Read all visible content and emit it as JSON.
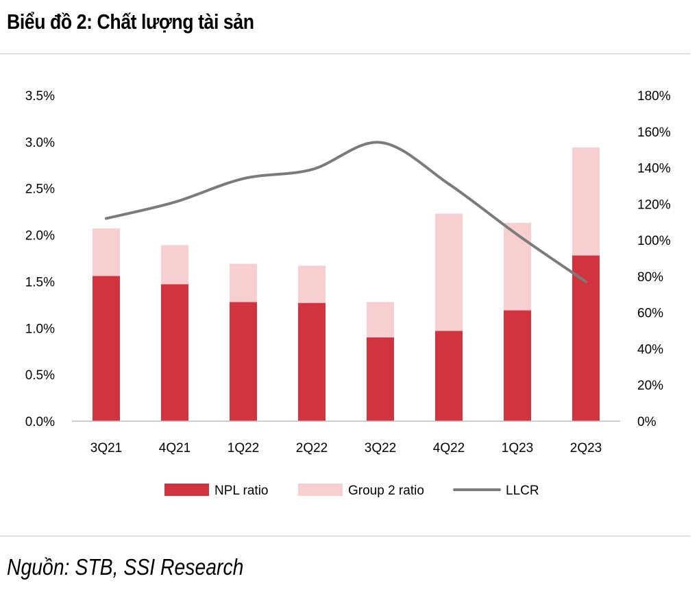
{
  "title": "Biểu đồ 2: Chất lượng tài sản",
  "source": "Nguồn: STB, SSI Research",
  "colors": {
    "npl": "#d1343f",
    "group2": "#f7cfd0",
    "llcr": "#7b7b7b",
    "axis": "#bdbdbd"
  },
  "chart_data": {
    "type": "bar",
    "stacked": true,
    "categories": [
      "3Q21",
      "4Q21",
      "1Q22",
      "2Q22",
      "3Q22",
      "4Q22",
      "1Q23",
      "2Q23"
    ],
    "series": [
      {
        "name": "NPL ratio",
        "type": "bar",
        "axis": "left",
        "values": [
          1.56,
          1.47,
          1.28,
          1.27,
          0.9,
          0.97,
          1.19,
          1.78
        ]
      },
      {
        "name": "Group 2 ratio",
        "type": "bar",
        "axis": "left",
        "values": [
          0.51,
          0.42,
          0.41,
          0.4,
          0.38,
          1.26,
          0.94,
          1.16
        ]
      },
      {
        "name": "LLCR",
        "type": "line",
        "axis": "right",
        "values": [
          112,
          121,
          134,
          139,
          154,
          131,
          103,
          77
        ]
      }
    ],
    "left_axis": {
      "min": 0,
      "max": 3.5,
      "step": 0.5,
      "ticks": [
        "0.0%",
        "0.5%",
        "1.0%",
        "1.5%",
        "2.0%",
        "2.5%",
        "3.0%",
        "3.5%"
      ]
    },
    "right_axis": {
      "min": 0,
      "max": 180,
      "step": 20,
      "ticks": [
        "0%",
        "20%",
        "40%",
        "60%",
        "80%",
        "100%",
        "120%",
        "140%",
        "160%",
        "180%"
      ]
    },
    "legend": [
      "NPL ratio",
      "Group 2 ratio",
      "LLCR"
    ],
    "legend_position": "bottom"
  }
}
